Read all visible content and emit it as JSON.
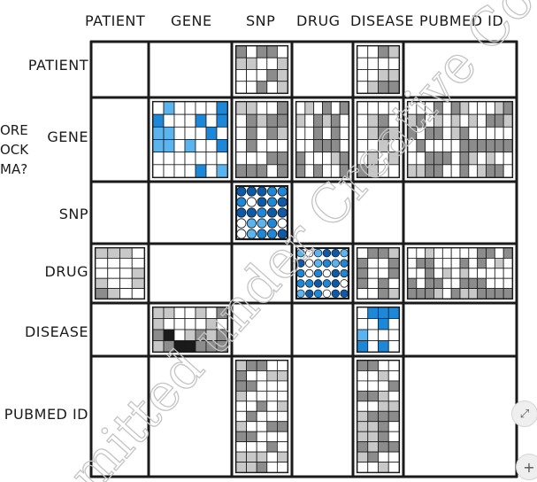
{
  "column_labels": [
    "PATIENT",
    "GENE",
    "SNP",
    "DRUG",
    "DISEASE",
    "PUBMED ID"
  ],
  "row_labels": [
    "PATIENT",
    "GENE",
    "SNP",
    "DRUG",
    "DISEASE",
    "PUBMED ID"
  ],
  "side_fragments": [
    "ORE",
    "OCK",
    "MA?"
  ],
  "watermark_text": "mitted under Creative Co",
  "colors": {
    "line": "#1a1a1a",
    "light_gray": "#c8c8c8",
    "mid_gray": "#8c8c8c",
    "dark": "#1a1a1a",
    "blue": "#1e88d8",
    "dark_blue": "#0d5aa8",
    "light_blue": "#5bb4ee",
    "white": "#ffffff"
  },
  "icons": {
    "collapse": "collapse-icon",
    "add": "plus-icon"
  },
  "blocks": [
    {
      "row": 0,
      "col": 2,
      "style": "gray",
      "cols": 5,
      "rows": 4
    },
    {
      "row": 0,
      "col": 4,
      "style": "gray",
      "cols": 4,
      "rows": 4
    },
    {
      "row": 1,
      "col": 1,
      "style": "blue",
      "cols": 7,
      "rows": 6
    },
    {
      "row": 1,
      "col": 2,
      "style": "gray",
      "cols": 5,
      "rows": 6
    },
    {
      "row": 1,
      "col": 3,
      "style": "gray",
      "cols": 6,
      "rows": 6
    },
    {
      "row": 1,
      "col": 4,
      "style": "gray",
      "cols": 4,
      "rows": 6
    },
    {
      "row": 1,
      "col": 5,
      "style": "gray",
      "cols": 12,
      "rows": 6
    },
    {
      "row": 2,
      "col": 2,
      "style": "blue-dots",
      "cols": 5,
      "rows": 5
    },
    {
      "row": 3,
      "col": 0,
      "style": "gray",
      "cols": 4,
      "rows": 5
    },
    {
      "row": 3,
      "col": 3,
      "style": "blue-dots",
      "cols": 6,
      "rows": 5
    },
    {
      "row": 3,
      "col": 4,
      "style": "gray",
      "cols": 4,
      "rows": 5
    },
    {
      "row": 3,
      "col": 5,
      "style": "gray",
      "cols": 12,
      "rows": 5
    },
    {
      "row": 4,
      "col": 1,
      "style": "gray-dark",
      "cols": 7,
      "rows": 4
    },
    {
      "row": 4,
      "col": 4,
      "style": "blue",
      "cols": 4,
      "rows": 4
    },
    {
      "row": 5,
      "col": 2,
      "style": "gray",
      "cols": 5,
      "rows": 11
    },
    {
      "row": 5,
      "col": 4,
      "style": "gray",
      "cols": 4,
      "rows": 11
    }
  ]
}
